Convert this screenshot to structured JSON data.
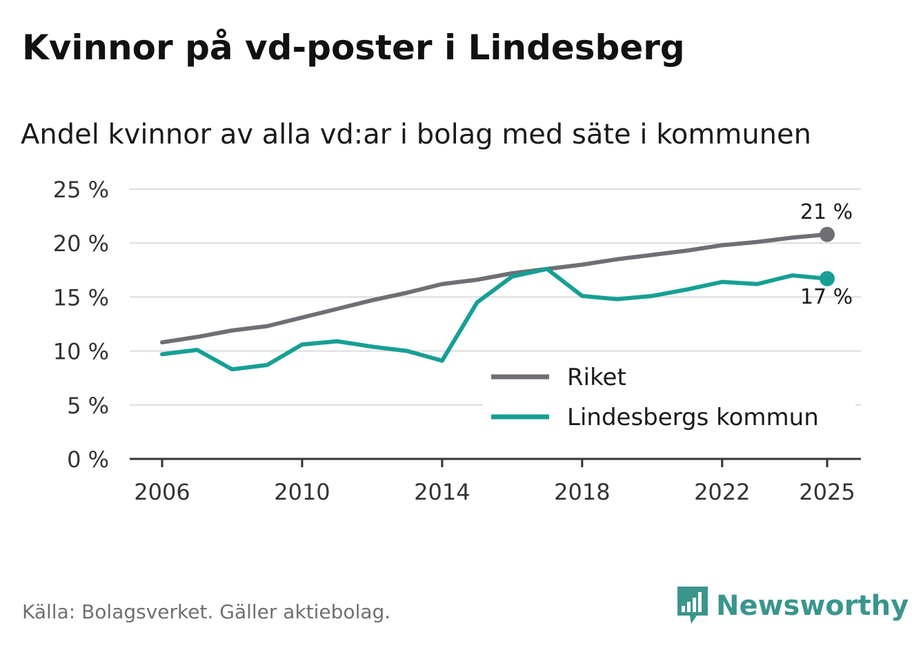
{
  "title": "Kvinnor på vd-poster i Lindesberg",
  "subtitle": "Andel kvinnor av alla vd:ar i bolag med säte i kommunen",
  "source": "Källa: Bolagsverket. Gäller aktiebolag.",
  "brand": "Newsworthy",
  "colors": {
    "riket": "#6e6e74",
    "kommun": "#179f94",
    "brand": "#3b958d"
  },
  "chart_data": {
    "type": "line",
    "x": [
      2006,
      2007,
      2008,
      2009,
      2010,
      2011,
      2012,
      2013,
      2014,
      2015,
      2016,
      2017,
      2018,
      2019,
      2020,
      2021,
      2022,
      2023,
      2024,
      2025
    ],
    "series": [
      {
        "name": "Riket",
        "color": "#6e6e74",
        "values": [
          10.8,
          11.3,
          11.9,
          12.3,
          13.1,
          13.9,
          14.7,
          15.4,
          16.2,
          16.6,
          17.2,
          17.6,
          18.0,
          18.5,
          18.9,
          19.3,
          19.8,
          20.1,
          20.5,
          20.8
        ]
      },
      {
        "name": "Lindesbergs kommun",
        "color": "#179f94",
        "values": [
          9.7,
          10.1,
          8.3,
          8.7,
          10.6,
          10.9,
          10.4,
          10.0,
          9.1,
          14.5,
          16.9,
          17.6,
          15.1,
          14.8,
          15.1,
          15.7,
          16.4,
          16.2,
          17.0,
          16.7
        ]
      }
    ],
    "yticks": [
      0,
      5,
      10,
      15,
      20,
      25
    ],
    "ytick_labels": [
      "0 %",
      "5 %",
      "10 %",
      "15 %",
      "20 %",
      "25 %"
    ],
    "xticks": [
      2006,
      2010,
      2014,
      2018,
      2022,
      2025
    ],
    "xtick_labels": [
      "2006",
      "2010",
      "2014",
      "2018",
      "2022",
      "2025"
    ],
    "ylim": [
      0,
      25
    ],
    "xlim": [
      2006,
      2025
    ],
    "end_labels": [
      "21 %",
      "17 %"
    ],
    "legend": [
      "Riket",
      "Lindesbergs kommun"
    ],
    "legend_position": "lower-right",
    "grid": true
  }
}
